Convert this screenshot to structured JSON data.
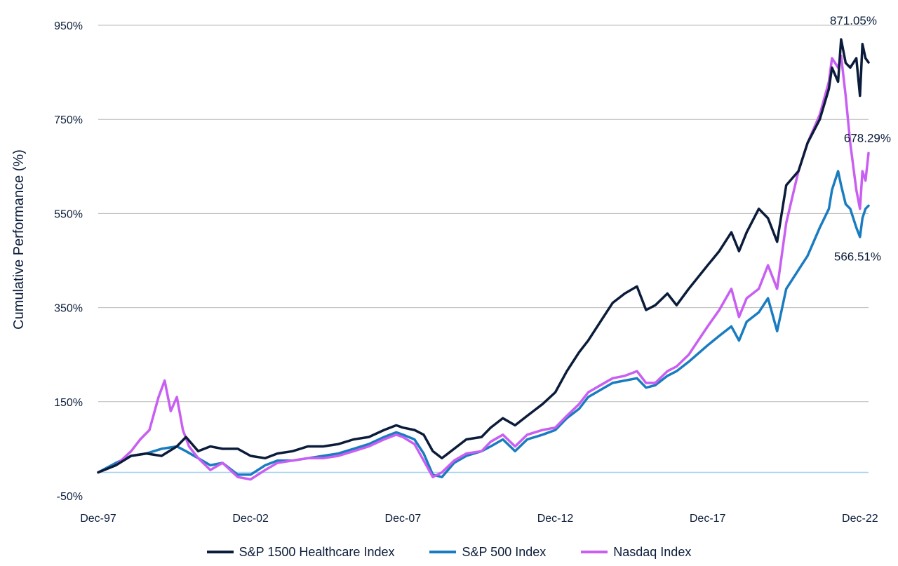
{
  "chart_data": {
    "type": "line",
    "title": "",
    "xlabel": "",
    "ylabel": "Cumulative Performance (%)",
    "ylim": [
      -50,
      950
    ],
    "y_ticks": [
      -50,
      150,
      350,
      550,
      750,
      950
    ],
    "y_tick_labels": [
      "-50%",
      "150%",
      "350%",
      "550%",
      "750%",
      "950%"
    ],
    "x_ticks": [
      1997.92,
      2002.92,
      2007.92,
      2012.92,
      2017.92,
      2022.92
    ],
    "x_tick_labels": [
      "Dec-97",
      "Dec-02",
      "Dec-07",
      "Dec-12",
      "Dec-17",
      "Dec-22"
    ],
    "xlim": [
      1997.92,
      2023.2
    ],
    "zero_line": 0,
    "grid": true,
    "legend_position": "bottom",
    "series": [
      {
        "name": "S&P 1500 Healthcare Index",
        "color": "#0b1c3a",
        "points": [
          [
            1997.92,
            0
          ],
          [
            1998.5,
            15
          ],
          [
            1999.0,
            35
          ],
          [
            1999.5,
            40
          ],
          [
            2000.0,
            35
          ],
          [
            2000.5,
            55
          ],
          [
            2000.8,
            75
          ],
          [
            2001.2,
            45
          ],
          [
            2001.6,
            55
          ],
          [
            2002.0,
            50
          ],
          [
            2002.5,
            50
          ],
          [
            2002.92,
            35
          ],
          [
            2003.4,
            30
          ],
          [
            2003.8,
            40
          ],
          [
            2004.3,
            45
          ],
          [
            2004.8,
            55
          ],
          [
            2005.3,
            55
          ],
          [
            2005.8,
            60
          ],
          [
            2006.3,
            70
          ],
          [
            2006.8,
            75
          ],
          [
            2007.3,
            90
          ],
          [
            2007.7,
            100
          ],
          [
            2007.92,
            95
          ],
          [
            2008.3,
            90
          ],
          [
            2008.6,
            80
          ],
          [
            2008.9,
            45
          ],
          [
            2009.2,
            30
          ],
          [
            2009.6,
            50
          ],
          [
            2010.0,
            70
          ],
          [
            2010.5,
            75
          ],
          [
            2010.8,
            95
          ],
          [
            2011.2,
            115
          ],
          [
            2011.6,
            100
          ],
          [
            2012.0,
            120
          ],
          [
            2012.5,
            145
          ],
          [
            2012.92,
            170
          ],
          [
            2013.3,
            215
          ],
          [
            2013.7,
            255
          ],
          [
            2014.0,
            280
          ],
          [
            2014.4,
            320
          ],
          [
            2014.8,
            360
          ],
          [
            2015.2,
            380
          ],
          [
            2015.6,
            395
          ],
          [
            2015.9,
            345
          ],
          [
            2016.2,
            355
          ],
          [
            2016.6,
            380
          ],
          [
            2016.9,
            355
          ],
          [
            2017.3,
            390
          ],
          [
            2017.92,
            440
          ],
          [
            2018.3,
            470
          ],
          [
            2018.7,
            510
          ],
          [
            2018.95,
            470
          ],
          [
            2019.2,
            510
          ],
          [
            2019.6,
            560
          ],
          [
            2019.9,
            540
          ],
          [
            2020.2,
            490
          ],
          [
            2020.5,
            610
          ],
          [
            2020.9,
            640
          ],
          [
            2021.2,
            700
          ],
          [
            2021.6,
            750
          ],
          [
            2021.9,
            815
          ],
          [
            2022.0,
            860
          ],
          [
            2022.2,
            830
          ],
          [
            2022.3,
            920
          ],
          [
            2022.45,
            870
          ],
          [
            2022.6,
            860
          ],
          [
            2022.8,
            880
          ],
          [
            2022.92,
            800
          ],
          [
            2023.0,
            910
          ],
          [
            2023.1,
            880
          ],
          [
            2023.2,
            871.05
          ]
        ]
      },
      {
        "name": "S&P 500 Index",
        "color": "#1a7cc0",
        "points": [
          [
            1997.92,
            0
          ],
          [
            1998.5,
            20
          ],
          [
            1999.0,
            35
          ],
          [
            1999.5,
            40
          ],
          [
            2000.0,
            50
          ],
          [
            2000.5,
            55
          ],
          [
            2000.8,
            45
          ],
          [
            2001.2,
            30
          ],
          [
            2001.6,
            15
          ],
          [
            2002.0,
            20
          ],
          [
            2002.5,
            -5
          ],
          [
            2002.92,
            -5
          ],
          [
            2003.4,
            15
          ],
          [
            2003.8,
            25
          ],
          [
            2004.3,
            25
          ],
          [
            2004.8,
            30
          ],
          [
            2005.3,
            35
          ],
          [
            2005.8,
            40
          ],
          [
            2006.3,
            50
          ],
          [
            2006.8,
            60
          ],
          [
            2007.3,
            75
          ],
          [
            2007.7,
            85
          ],
          [
            2007.92,
            80
          ],
          [
            2008.3,
            70
          ],
          [
            2008.6,
            40
          ],
          [
            2008.9,
            -5
          ],
          [
            2009.2,
            -10
          ],
          [
            2009.6,
            20
          ],
          [
            2010.0,
            35
          ],
          [
            2010.5,
            45
          ],
          [
            2010.8,
            55
          ],
          [
            2011.2,
            70
          ],
          [
            2011.6,
            45
          ],
          [
            2012.0,
            70
          ],
          [
            2012.5,
            80
          ],
          [
            2012.92,
            90
          ],
          [
            2013.3,
            115
          ],
          [
            2013.7,
            135
          ],
          [
            2014.0,
            160
          ],
          [
            2014.4,
            175
          ],
          [
            2014.8,
            190
          ],
          [
            2015.2,
            195
          ],
          [
            2015.6,
            200
          ],
          [
            2015.9,
            180
          ],
          [
            2016.2,
            185
          ],
          [
            2016.6,
            205
          ],
          [
            2016.9,
            215
          ],
          [
            2017.3,
            235
          ],
          [
            2017.92,
            270
          ],
          [
            2018.3,
            290
          ],
          [
            2018.7,
            310
          ],
          [
            2018.95,
            280
          ],
          [
            2019.2,
            320
          ],
          [
            2019.6,
            340
          ],
          [
            2019.9,
            370
          ],
          [
            2020.2,
            300
          ],
          [
            2020.5,
            390
          ],
          [
            2020.9,
            430
          ],
          [
            2021.2,
            460
          ],
          [
            2021.6,
            520
          ],
          [
            2021.9,
            560
          ],
          [
            2022.0,
            600
          ],
          [
            2022.2,
            640
          ],
          [
            2022.3,
            610
          ],
          [
            2022.45,
            570
          ],
          [
            2022.6,
            560
          ],
          [
            2022.8,
            520
          ],
          [
            2022.92,
            500
          ],
          [
            2023.0,
            540
          ],
          [
            2023.1,
            560
          ],
          [
            2023.2,
            566.51
          ]
        ]
      },
      {
        "name": "Nasdaq Index",
        "color": "#c95ef2",
        "points": [
          [
            1997.92,
            0
          ],
          [
            1998.5,
            15
          ],
          [
            1999.0,
            45
          ],
          [
            1999.3,
            70
          ],
          [
            1999.6,
            90
          ],
          [
            1999.9,
            160
          ],
          [
            2000.1,
            195
          ],
          [
            2000.3,
            130
          ],
          [
            2000.5,
            160
          ],
          [
            2000.7,
            90
          ],
          [
            2000.9,
            55
          ],
          [
            2001.2,
            30
          ],
          [
            2001.6,
            5
          ],
          [
            2002.0,
            20
          ],
          [
            2002.5,
            -10
          ],
          [
            2002.92,
            -15
          ],
          [
            2003.4,
            5
          ],
          [
            2003.8,
            20
          ],
          [
            2004.3,
            25
          ],
          [
            2004.8,
            30
          ],
          [
            2005.3,
            30
          ],
          [
            2005.8,
            35
          ],
          [
            2006.3,
            45
          ],
          [
            2006.8,
            55
          ],
          [
            2007.3,
            70
          ],
          [
            2007.7,
            80
          ],
          [
            2007.92,
            75
          ],
          [
            2008.3,
            60
          ],
          [
            2008.6,
            25
          ],
          [
            2008.9,
            -10
          ],
          [
            2009.2,
            0
          ],
          [
            2009.6,
            25
          ],
          [
            2010.0,
            40
          ],
          [
            2010.5,
            45
          ],
          [
            2010.8,
            65
          ],
          [
            2011.2,
            80
          ],
          [
            2011.6,
            55
          ],
          [
            2012.0,
            80
          ],
          [
            2012.5,
            90
          ],
          [
            2012.92,
            95
          ],
          [
            2013.3,
            120
          ],
          [
            2013.7,
            145
          ],
          [
            2014.0,
            170
          ],
          [
            2014.4,
            185
          ],
          [
            2014.8,
            200
          ],
          [
            2015.2,
            205
          ],
          [
            2015.6,
            215
          ],
          [
            2015.9,
            190
          ],
          [
            2016.2,
            190
          ],
          [
            2016.6,
            215
          ],
          [
            2016.9,
            225
          ],
          [
            2017.3,
            250
          ],
          [
            2017.92,
            310
          ],
          [
            2018.3,
            345
          ],
          [
            2018.7,
            390
          ],
          [
            2018.95,
            330
          ],
          [
            2019.2,
            370
          ],
          [
            2019.6,
            390
          ],
          [
            2019.9,
            440
          ],
          [
            2020.2,
            390
          ],
          [
            2020.5,
            530
          ],
          [
            2020.9,
            640
          ],
          [
            2021.2,
            700
          ],
          [
            2021.6,
            760
          ],
          [
            2021.9,
            830
          ],
          [
            2022.0,
            880
          ],
          [
            2022.2,
            860
          ],
          [
            2022.3,
            885
          ],
          [
            2022.45,
            800
          ],
          [
            2022.6,
            700
          ],
          [
            2022.8,
            600
          ],
          [
            2022.92,
            560
          ],
          [
            2023.0,
            640
          ],
          [
            2023.1,
            620
          ],
          [
            2023.2,
            678.29
          ]
        ]
      }
    ],
    "annotations": [
      {
        "text": "871.05%",
        "series": 0
      },
      {
        "text": "678.29%",
        "series": 2
      },
      {
        "text": "566.51%",
        "series": 1
      }
    ]
  }
}
